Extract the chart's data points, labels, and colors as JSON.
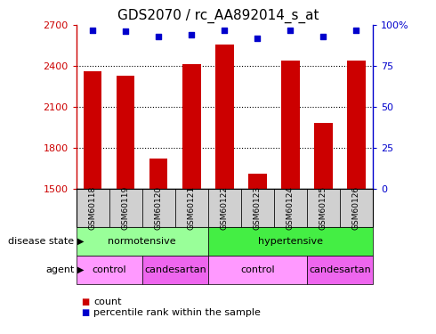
{
  "title": "GDS2070 / rc_AA892014_s_at",
  "samples": [
    "GSM60118",
    "GSM60119",
    "GSM60120",
    "GSM60121",
    "GSM60122",
    "GSM60123",
    "GSM60124",
    "GSM60125",
    "GSM60126"
  ],
  "counts": [
    2360,
    2330,
    1720,
    2415,
    2555,
    1610,
    2440,
    1980,
    2440
  ],
  "percentiles": [
    97,
    96,
    93,
    94,
    97,
    92,
    97,
    93,
    97
  ],
  "ylim_left": [
    1500,
    2700
  ],
  "ylim_right": [
    0,
    100
  ],
  "yticks_left": [
    1500,
    1800,
    2100,
    2400,
    2700
  ],
  "yticks_right": [
    0,
    25,
    50,
    75,
    100
  ],
  "bar_color": "#cc0000",
  "dot_color": "#0000cc",
  "left_axis_color": "#cc0000",
  "right_axis_color": "#0000cc",
  "background_color": "#ffffff",
  "title_fontsize": 11,
  "tick_fontsize": 8,
  "disease_groups": [
    {
      "label": "normotensive",
      "start": 0,
      "end": 4,
      "color": "#99ff99"
    },
    {
      "label": "hypertensive",
      "start": 4,
      "end": 9,
      "color": "#44ee44"
    }
  ],
  "agent_groups": [
    {
      "label": "control",
      "start": 0,
      "end": 2,
      "color": "#ff99ff"
    },
    {
      "label": "candesartan",
      "start": 2,
      "end": 4,
      "color": "#ee66ee"
    },
    {
      "label": "control",
      "start": 4,
      "end": 7,
      "color": "#ff99ff"
    },
    {
      "label": "candesartan",
      "start": 7,
      "end": 9,
      "color": "#ee66ee"
    }
  ]
}
